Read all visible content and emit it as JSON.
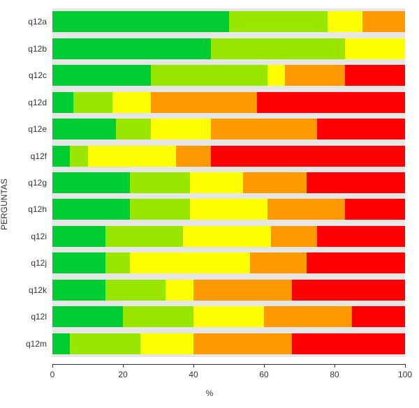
{
  "chart": {
    "type": "stacked-bar-horizontal",
    "background_color": "#e6e6e6",
    "page_background": "#ffffff",
    "x_axis": {
      "title": "%",
      "min": 0,
      "max": 100,
      "ticks": [
        0,
        20,
        40,
        60,
        80,
        100
      ],
      "tick_labels": [
        "0",
        "20",
        "40",
        "60",
        "80",
        "100"
      ],
      "title_fontsize": 12,
      "tick_fontsize": 12,
      "axis_color": "#333333"
    },
    "y_axis": {
      "title": "PERGUNTAS",
      "title_fontsize": 12,
      "tick_fontsize": 12,
      "categories": [
        "q12a",
        "q12b",
        "q12c",
        "q12d",
        "q12e",
        "q12f",
        "q12g",
        "q12h",
        "q12i",
        "q12j",
        "q12k",
        "q12l",
        "q12m"
      ]
    },
    "series_colors": [
      "#00cc33",
      "#99e600",
      "#ffff00",
      "#ff9900",
      "#ff0000"
    ],
    "bar_height_ratio": 0.78,
    "data": [
      {
        "category": "q12a",
        "values": [
          50,
          28,
          10,
          12,
          0
        ]
      },
      {
        "category": "q12b",
        "values": [
          45,
          38,
          17,
          0,
          0
        ]
      },
      {
        "category": "q12c",
        "values": [
          28,
          33,
          5,
          17,
          17
        ]
      },
      {
        "category": "q12d",
        "values": [
          6,
          11,
          11,
          30,
          42
        ]
      },
      {
        "category": "q12e",
        "values": [
          18,
          10,
          17,
          30,
          25
        ]
      },
      {
        "category": "q12f",
        "values": [
          5,
          5,
          25,
          10,
          55
        ]
      },
      {
        "category": "q12g",
        "values": [
          22,
          17,
          15,
          18,
          28
        ]
      },
      {
        "category": "q12h",
        "values": [
          22,
          17,
          22,
          22,
          17
        ]
      },
      {
        "category": "q12i",
        "values": [
          15,
          22,
          25,
          13,
          25
        ]
      },
      {
        "category": "q12j",
        "values": [
          15,
          7,
          34,
          16,
          28
        ]
      },
      {
        "category": "q12k",
        "values": [
          15,
          17,
          8,
          28,
          32
        ]
      },
      {
        "category": "q12l",
        "values": [
          20,
          20,
          20,
          25,
          15
        ]
      },
      {
        "category": "q12m",
        "values": [
          5,
          20,
          15,
          28,
          32
        ]
      }
    ]
  }
}
